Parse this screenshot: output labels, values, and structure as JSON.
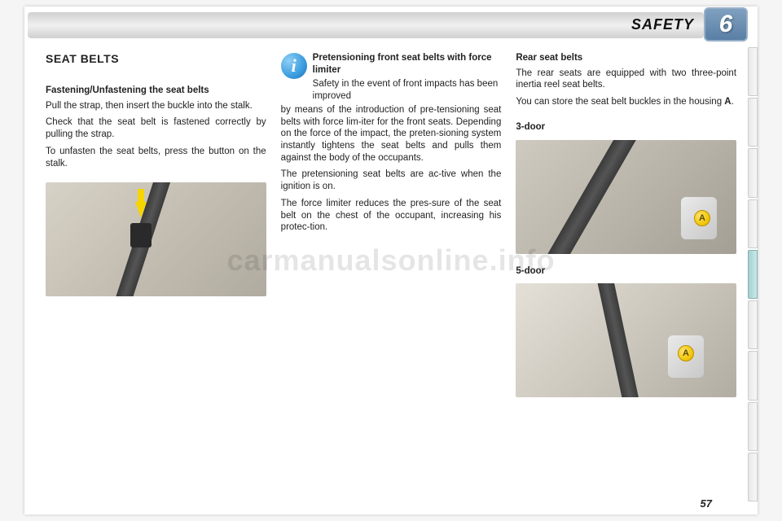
{
  "header": {
    "title": "SAFETY",
    "chapter": "6"
  },
  "side_tabs": {
    "count": 9,
    "active_index": 4
  },
  "col1": {
    "section_title": "SEAT BELTS",
    "sub_heading": "Fastening/Unfastening the seat belts",
    "p1": "Pull the strap, then insert the buckle into the stalk.",
    "p2": "Check that the seat belt is fastened correctly by pulling the strap.",
    "p3": "To unfasten the seat belts, press the button on the stalk."
  },
  "col2": {
    "info_heading": "Pretensioning front seat belts with force limiter",
    "info_p1": "Safety in the event of front impacts has been improved",
    "p1": "by means of the introduction of pre-tensioning seat belts with force lim-iter for the front seats. Depending on the force of the impact, the preten-sioning system instantly tightens the seat belts and pulls them against the body of the occupants.",
    "p2": "The pretensioning seat belts are ac-tive when the ignition is on.",
    "p3": "The force limiter reduces the pres-sure of the seat belt on the chest of the occupant, increasing his protec-tion."
  },
  "col3": {
    "heading": "Rear seat belts",
    "p1": "The rear seats are equipped with two three-point inertia reel seat belts.",
    "p2_pre": "You can store the seat belt buckles in the housing ",
    "p2_bold": "A",
    "p2_post": ".",
    "label_3door": "3-door",
    "label_5door": "5-door",
    "marker": "A"
  },
  "page_number": "57",
  "watermark": "carmanualsonline.info",
  "colors": {
    "badge_bg_top": "#7fa0c0",
    "badge_bg_bottom": "#5a7fa5",
    "info_icon_outer": "#1e6fb0",
    "marker_fill": "#f0c200",
    "arrow_fill": "#f5d400"
  }
}
